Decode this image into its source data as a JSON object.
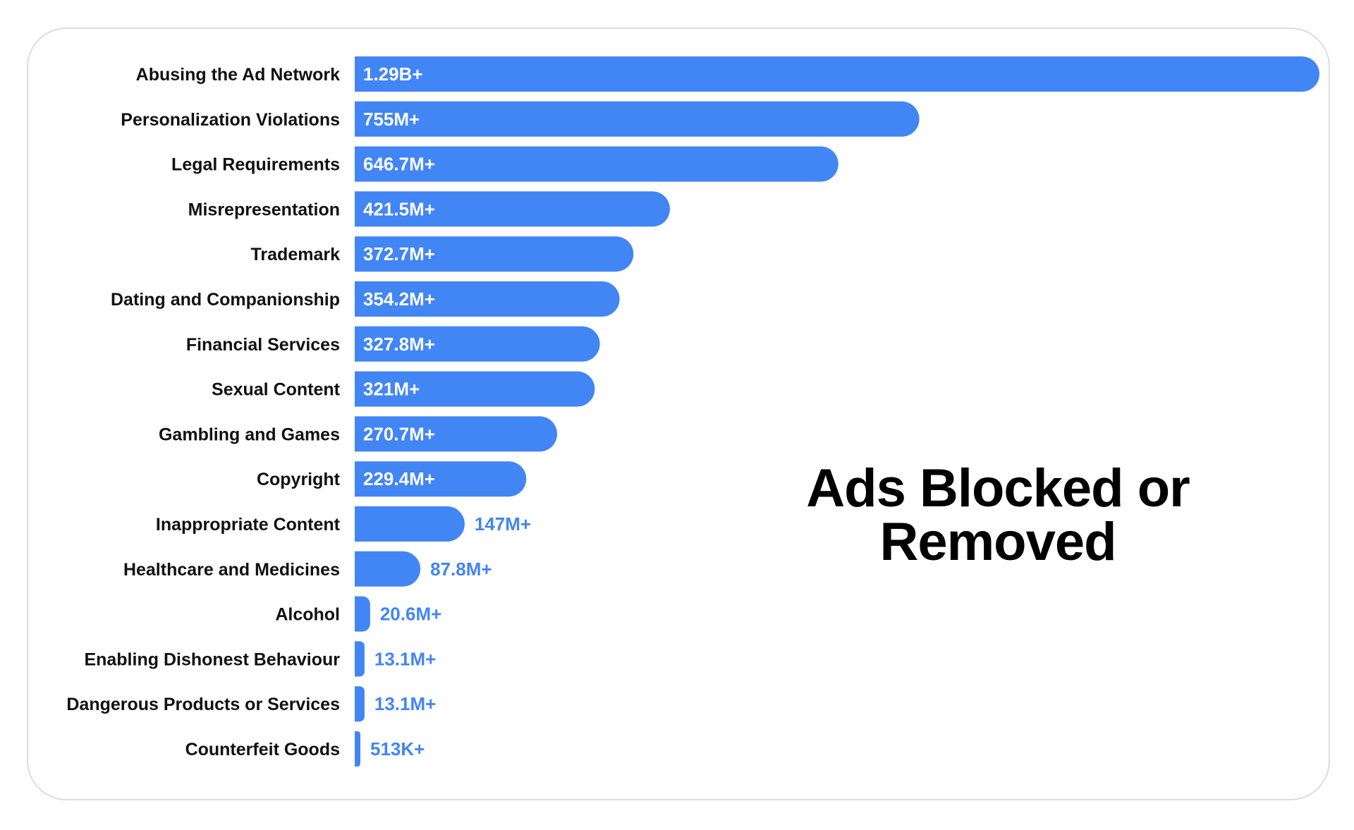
{
  "chart_data": {
    "type": "bar",
    "orientation": "horizontal",
    "title": "Ads Blocked or Removed",
    "bar_color": "#4285F4",
    "categories": [
      "Abusing the Ad Network",
      "Personalization Violations",
      "Legal Requirements",
      "Misrepresentation",
      "Trademark",
      "Dating and Companionship",
      "Financial Services",
      "Sexual Content",
      "Gambling and Games",
      "Copyright",
      "Inappropriate Content",
      "Healthcare and Medicines",
      "Alcohol",
      "Enabling Dishonest Behaviour",
      "Dangerous Products or Services",
      "Counterfeit Goods"
    ],
    "values": [
      1290000000,
      755000000,
      646700000,
      421500000,
      372700000,
      354200000,
      327800000,
      321000000,
      270700000,
      229400000,
      147000000,
      87800000,
      20600000,
      13100000,
      13100000,
      513000
    ],
    "value_labels": [
      "1.29B+",
      "755M+",
      "646.7M+",
      "421.5M+",
      "372.7M+",
      "354.2M+",
      "327.8M+",
      "321M+",
      "270.7M+",
      "229.4M+",
      "147M+",
      "87.8M+",
      "20.6M+",
      "13.1M+",
      "13.1M+",
      "513K+"
    ],
    "xlabel": "",
    "ylabel": "",
    "grid": false,
    "legend": "none"
  }
}
